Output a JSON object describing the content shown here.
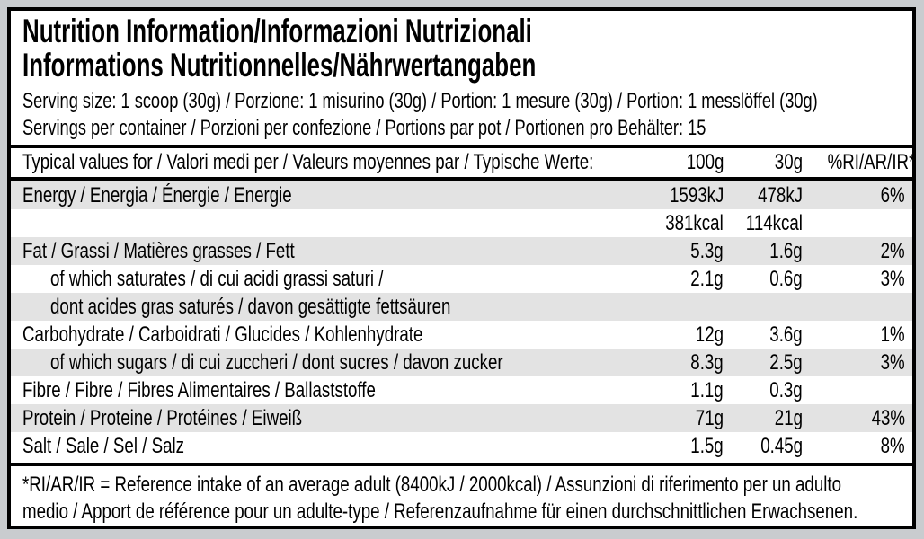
{
  "colors": {
    "page_background": "#c9cccf",
    "label_background": "#ffffff",
    "border_black": "#000000",
    "row_shade": "#e3e3e3"
  },
  "title": {
    "line1": "Nutrition Information/Informazioni Nutrizionali",
    "line2": "Informations Nutritionnelles/Nährwertangaben"
  },
  "serving": {
    "size_line": "Serving size: 1 scoop (30g) / Porzione: 1 misurino (30g) / Portion: 1 mesure (30g) / Portion: 1 messlöffel (30g)",
    "per_container_line": "Servings per container / Porzioni per confezione / Portions par pot / Portionen pro Behälter: 15"
  },
  "table": {
    "header": {
      "label": "Typical values for / Valori medi per / Valeurs moyennes par / Typische Werte:",
      "col_100g": "100g",
      "col_30g": "30g",
      "col_ri": "%RI/AR/IR*"
    },
    "rows": [
      {
        "label": "Energy / Energia / Énergie / Energie",
        "v100": "1593kJ",
        "v30": "478kJ",
        "ri": "6%",
        "shaded": true,
        "indent": false
      },
      {
        "label": "",
        "v100": "381kcal",
        "v30": "114kcal",
        "ri": "",
        "shaded": false,
        "indent": false
      },
      {
        "label": "Fat / Grassi / Matières grasses / Fett",
        "v100": "5.3g",
        "v30": "1.6g",
        "ri": "2%",
        "shaded": true,
        "indent": false
      },
      {
        "label": "of which saturates / di cui acidi grassi saturi /",
        "v100": "2.1g",
        "v30": "0.6g",
        "ri": "3%",
        "shaded": false,
        "indent": true
      },
      {
        "label": "dont acides gras saturés / davon gesättigte fettsäuren",
        "v100": "",
        "v30": "",
        "ri": "",
        "shaded": true,
        "indent": true
      },
      {
        "label": "Carbohydrate / Carboidrati / Glucides / Kohlenhydrate",
        "v100": "12g",
        "v30": "3.6g",
        "ri": "1%",
        "shaded": false,
        "indent": false
      },
      {
        "label": "of which sugars / di cui zuccheri / dont sucres / davon zucker",
        "v100": "8.3g",
        "v30": "2.5g",
        "ri": "3%",
        "shaded": true,
        "indent": true
      },
      {
        "label": "Fibre / Fibre / Fibres Alimentaires / Ballaststoffe",
        "v100": "1.1g",
        "v30": "0.3g",
        "ri": "",
        "shaded": false,
        "indent": false
      },
      {
        "label": "Protein / Proteine / Protéines / Eiweiß",
        "v100": "71g",
        "v30": "21g",
        "ri": "43%",
        "shaded": true,
        "indent": false
      },
      {
        "label": "Salt / Sale / Sel / Salz",
        "v100": "1.5g",
        "v30": "0.45g",
        "ri": "8%",
        "shaded": false,
        "indent": false
      }
    ]
  },
  "footnote": {
    "full_text": "*RI/AR/IR = Reference intake of an average adult (8400kJ / 2000kcal) / Assunzioni di riferimento per un adulto medio / Apport de référence pour un adulte-type / Referenzaufnahme für einen durchschnittlichen Erwachsenen.",
    "line1": "*RI/AR/IR = Reference intake of an average adult (8400kJ / 2000kcal) / Assunzioni di riferimento per un adulto",
    "line2": "medio / Apport de référence pour un adulte-type / Referenzaufnahme für einen durchschnittlichen Erwachsenen."
  }
}
